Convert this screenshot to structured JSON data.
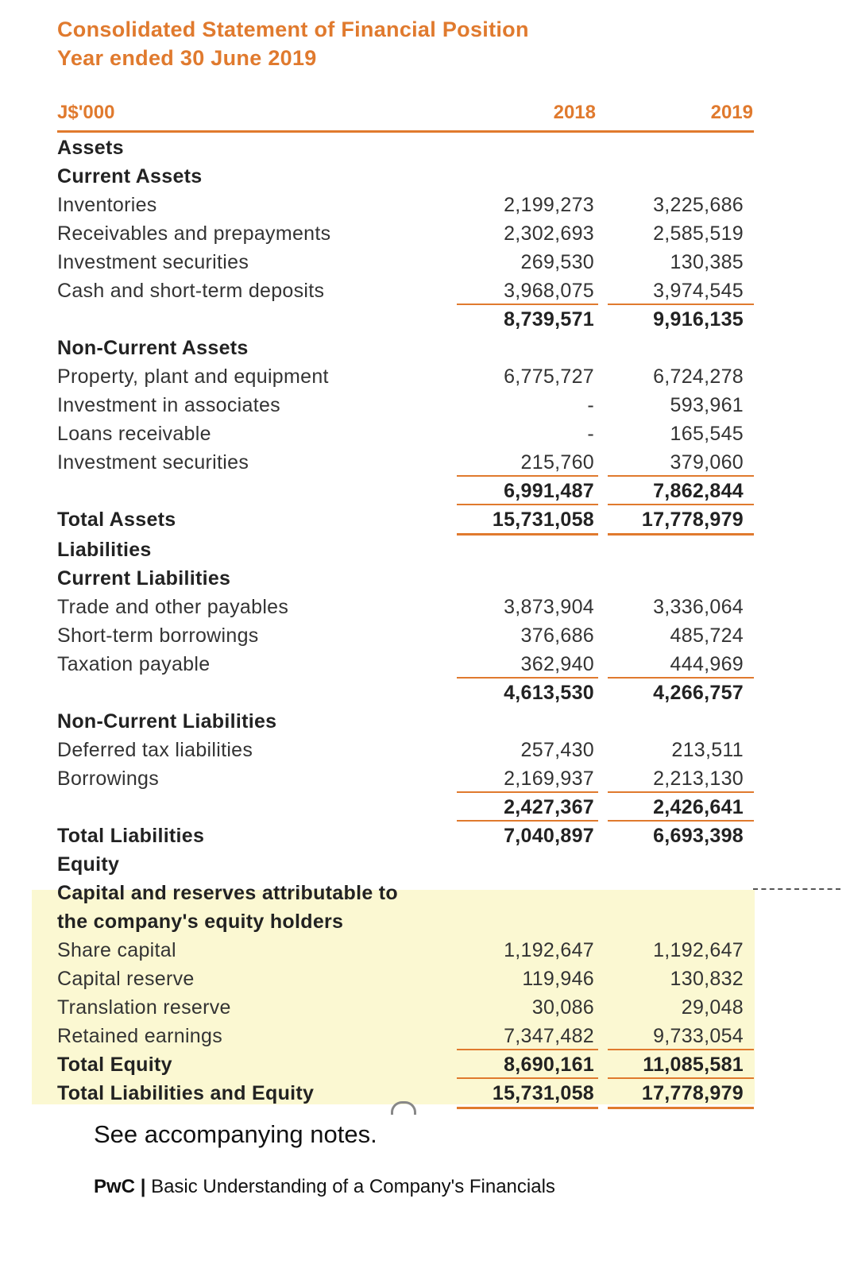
{
  "header": {
    "title": "Consolidated Statement of Financial Position",
    "subtitle": "Year ended 30 June 2019",
    "unit_label": "J$'000",
    "col_2018": "2018",
    "col_2019": "2019"
  },
  "rows": {
    "assets": "Assets",
    "current_assets": "Current Assets",
    "inventories": {
      "label": "Inventories",
      "v2018": "2,199,273",
      "v2019": "3,225,686"
    },
    "receivables": {
      "label": "Receivables and prepayments",
      "v2018": "2,302,693",
      "v2019": "2,585,519"
    },
    "inv_sec_cur": {
      "label": "Investment securities",
      "v2018": "269,530",
      "v2019": "130,385"
    },
    "cash": {
      "label": "Cash and short-term deposits",
      "v2018": "3,968,075",
      "v2019": "3,974,545"
    },
    "total_current_assets": {
      "v2018": "8,739,571",
      "v2019": "9,916,135"
    },
    "non_current_assets": "Non-Current Assets",
    "ppe": {
      "label": "Property, plant and equipment",
      "v2018": "6,775,727",
      "v2019": "6,724,278"
    },
    "associates": {
      "label": "Investment in associates",
      "v2018": "-",
      "v2019": "593,961"
    },
    "loans": {
      "label": "Loans receivable",
      "v2018": "-",
      "v2019": "165,545"
    },
    "inv_sec_nc": {
      "label": "Investment securities",
      "v2018": "215,760",
      "v2019": "379,060"
    },
    "total_nc_assets": {
      "v2018": "6,991,487",
      "v2019": "7,862,844"
    },
    "total_assets": {
      "label": "Total Assets",
      "v2018": "15,731,058",
      "v2019": "17,778,979"
    },
    "liabilities": "Liabilities",
    "current_liabilities": "Current Liabilities",
    "trade_payables": {
      "label": "Trade and other payables",
      "v2018": "3,873,904",
      "v2019": "3,336,064"
    },
    "st_borrowings": {
      "label": "Short-term borrowings",
      "v2018": "376,686",
      "v2019": "485,724"
    },
    "tax_payable": {
      "label": "Taxation payable",
      "v2018": "362,940",
      "v2019": "444,969"
    },
    "total_current_liabilities": {
      "v2018": "4,613,530",
      "v2019": "4,266,757"
    },
    "non_current_liabilities": "Non-Current Liabilities",
    "deferred_tax": {
      "label": "Deferred tax liabilities",
      "v2018": "257,430",
      "v2019": "213,511"
    },
    "borrowings": {
      "label": "Borrowings",
      "v2018": "2,169,937",
      "v2019": "2,213,130"
    },
    "total_nc_liabilities": {
      "v2018": "2,427,367",
      "v2019": "2,426,641"
    },
    "total_liabilities": {
      "label": "Total Liabilities",
      "v2018": "7,040,897",
      "v2019": "6,693,398"
    },
    "equity": "Equity",
    "cap_reserves_1": "Capital and reserves attributable to",
    "cap_reserves_2": "the company's equity holders",
    "share_capital": {
      "label": "Share capital",
      "v2018": "1,192,647",
      "v2019": "1,192,647"
    },
    "capital_reserve": {
      "label": "Capital reserve",
      "v2018": "119,946",
      "v2019": "130,832"
    },
    "translation_reserve": {
      "label": "Translation reserve",
      "v2018": "30,086",
      "v2019": "29,048"
    },
    "retained_earnings": {
      "label": "Retained earnings",
      "v2018": "7,347,482",
      "v2019": "9,733,054"
    },
    "total_equity": {
      "label": "Total Equity",
      "v2018": "8,690,161",
      "v2019": "11,085,581"
    },
    "total_liab_equity": {
      "label": "Total Liabilities and Equity",
      "v2018": "15,731,058",
      "v2019": "17,778,979"
    }
  },
  "footer": {
    "note": "See accompanying notes.",
    "brand": "PwC",
    "separator": "|",
    "caption": "Basic Understanding of a Company's Financials"
  }
}
